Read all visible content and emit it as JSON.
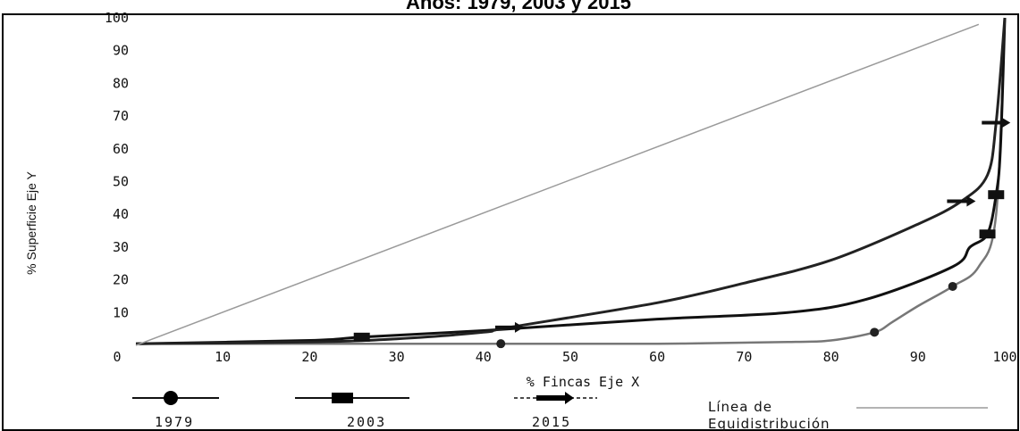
{
  "chart_data": {
    "type": "line",
    "title": "Años: 1979, 2003 y 2015",
    "xlabel": "% Fincas Eje X",
    "ylabel": "% Superficie Eje Y",
    "xlim": [
      0,
      100
    ],
    "ylim": [
      0,
      100
    ],
    "x_ticks": [
      "0",
      "10",
      "20",
      "30",
      "40",
      "50",
      "60",
      "70",
      "80",
      "90",
      "100"
    ],
    "y_ticks": [
      "10",
      "20",
      "30",
      "40",
      "50",
      "60",
      "70",
      "80",
      "90",
      "100"
    ],
    "grid": false,
    "legend_position": "bottom",
    "series": [
      {
        "name": "1979",
        "color": "#777777",
        "marker": "circle",
        "points": [
          [
            0,
            0.5
          ],
          [
            20,
            0.5
          ],
          [
            42,
            0.5
          ],
          [
            60,
            0.5
          ],
          [
            75,
            1
          ],
          [
            80,
            1.5
          ],
          [
            85,
            4
          ],
          [
            87,
            7
          ],
          [
            90,
            12
          ],
          [
            94,
            18
          ],
          [
            97,
            24
          ],
          [
            99,
            40
          ],
          [
            100,
            100
          ]
        ]
      },
      {
        "name": "2003",
        "color": "#111111",
        "marker": "square",
        "points": [
          [
            0,
            0.5
          ],
          [
            20,
            1.5
          ],
          [
            26,
            2.5
          ],
          [
            40,
            4.5
          ],
          [
            60,
            8
          ],
          [
            75,
            10
          ],
          [
            84,
            14
          ],
          [
            94,
            24
          ],
          [
            96,
            30
          ],
          [
            98,
            34
          ],
          [
            99,
            46
          ],
          [
            99.5,
            60
          ],
          [
            100,
            100
          ]
        ]
      },
      {
        "name": "2015",
        "color": "#222222",
        "marker": "arrow",
        "points": [
          [
            0,
            0.5
          ],
          [
            20,
            1
          ],
          [
            30,
            2
          ],
          [
            40,
            4
          ],
          [
            43,
            5.5
          ],
          [
            60,
            13
          ],
          [
            70,
            19
          ],
          [
            80,
            26
          ],
          [
            90,
            37
          ],
          [
            95,
            44
          ],
          [
            98,
            52
          ],
          [
            99,
            68
          ],
          [
            100,
            100
          ]
        ]
      },
      {
        "name": "Línea de Equidistribución",
        "color": "#9a9a9a",
        "marker": "none",
        "points": [
          [
            0,
            0
          ],
          [
            97,
            98
          ]
        ]
      }
    ],
    "legend": {
      "s1979": "1979",
      "s2003": "2003",
      "s2015": "2015",
      "equi_line1": "Línea de",
      "equi_line2": "Equidistribución"
    }
  }
}
